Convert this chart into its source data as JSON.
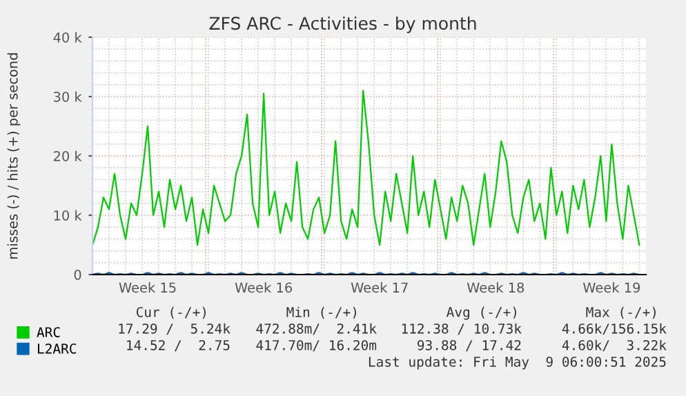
{
  "chart_data": {
    "type": "line",
    "title": "ZFS ARC - Activities - by month",
    "ylabel": "misses (-) / hits (+) per second",
    "categories": [
      null,
      null,
      null,
      null,
      null,
      null,
      null,
      null,
      null,
      null,
      "Week 15",
      null,
      null,
      null,
      null,
      null,
      null,
      null,
      null,
      null,
      null,
      null,
      null,
      null,
      null,
      null,
      null,
      null,
      null,
      null,
      null,
      "Week 16",
      null,
      null,
      null,
      null,
      null,
      null,
      null,
      null,
      null,
      null,
      null,
      null,
      null,
      null,
      null,
      null,
      null,
      null,
      null,
      null,
      "Week 17",
      null,
      null,
      null,
      null,
      null,
      null,
      null,
      null,
      null,
      null,
      null,
      null,
      null,
      null,
      null,
      null,
      null,
      null,
      null,
      null,
      "Week 18",
      null,
      null,
      null,
      null,
      null,
      null,
      null,
      null,
      null,
      null,
      null,
      null,
      null,
      null,
      null,
      null,
      null,
      null,
      null,
      null,
      "Week 19",
      null,
      null,
      null,
      null,
      null
    ],
    "series": [
      {
        "name": "ARC",
        "color": "#00cc00",
        "values": [
          5000,
          8000,
          13000,
          11000,
          17000,
          10000,
          6000,
          12000,
          10000,
          17000,
          25000,
          10000,
          14000,
          8000,
          16000,
          11000,
          15000,
          9000,
          13000,
          5000,
          11000,
          7000,
          15000,
          12000,
          9000,
          10000,
          17000,
          20000,
          27000,
          12000,
          8000,
          30500,
          10000,
          14000,
          7000,
          12000,
          9000,
          19000,
          8000,
          6000,
          11000,
          13000,
          7000,
          10000,
          22500,
          9000,
          6000,
          11000,
          8000,
          31000,
          22000,
          10000,
          5000,
          14000,
          9000,
          17000,
          12000,
          7000,
          20000,
          10000,
          14000,
          8000,
          16000,
          11000,
          6000,
          13000,
          9000,
          15000,
          12000,
          5000,
          11000,
          17000,
          8000,
          14000,
          22500,
          19000,
          10000,
          7000,
          13000,
          16000,
          9000,
          12000,
          6000,
          18000,
          10000,
          14000,
          7000,
          15000,
          11000,
          16000,
          8000,
          13000,
          20000,
          9000,
          22000,
          12000,
          6000,
          15000,
          10000,
          5000
        ]
      },
      {
        "name": "L2ARC",
        "color": "#0066b3",
        "values": [
          0,
          200,
          0,
          300,
          0,
          100,
          0,
          200,
          0,
          0,
          300,
          0,
          200,
          0,
          100,
          0,
          300,
          0,
          200,
          0,
          0,
          300,
          0,
          100,
          0,
          200,
          0,
          300,
          0,
          0,
          200,
          0,
          100,
          0,
          300,
          0,
          200,
          0,
          0,
          100,
          0,
          300,
          0,
          200,
          0,
          100,
          0,
          300,
          0,
          200,
          0,
          0,
          300,
          0,
          100,
          0,
          200,
          0,
          300,
          0,
          100,
          0,
          200,
          0,
          0,
          300,
          0,
          100,
          0,
          200,
          0,
          300,
          0,
          0,
          200,
          0,
          100,
          0,
          300,
          0,
          200,
          0,
          0,
          100,
          0,
          300,
          0,
          200,
          0,
          100,
          0,
          0,
          300,
          0,
          200,
          0,
          100,
          0,
          200,
          0
        ]
      }
    ],
    "ylim": [
      0,
      40000
    ],
    "yticks": [
      0,
      {
        "value": 10000,
        "label": "10 k"
      },
      {
        "value": 20000,
        "label": "20 k"
      },
      {
        "value": 30000,
        "label": "30 k"
      },
      {
        "value": 40000,
        "label": "40 k"
      }
    ],
    "grid": true,
    "legend": "bottom",
    "line_style": "solid",
    "annotations": [
      "Cur (-/+)",
      "Min (-/+)",
      "Avg (-/+)",
      "Max (-/+)",
      "17.29 /  5.24k",
      "472.88m/  2.41k",
      "112.38 / 10.73k",
      "4.66k/156.15k",
      "14.52 /  2.75",
      "417.70m/ 16.20m",
      "93.88 / 17.42",
      "4.60k/  3.22k",
      "Last update: Fri May  9 06:00:51 2025"
    ]
  }
}
